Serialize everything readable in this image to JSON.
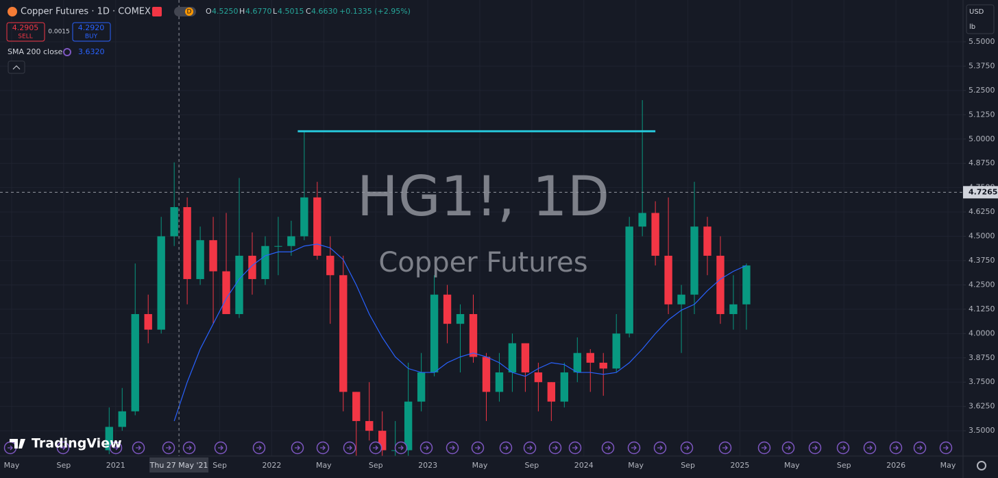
{
  "header": {
    "title": "Copper Futures · 1D · COMEX",
    "interval_badge": "D",
    "o_label": "O",
    "o": "4.5250",
    "h_label": "H",
    "h": "4.6770",
    "l_label": "L",
    "l": "4.5015",
    "c_label": "C",
    "c": "4.6630",
    "change": "+0.1335 (+2.95%)",
    "sell_price": "4.2905",
    "sell": "SELL",
    "spread": "0.0015",
    "buy_price": "4.2920",
    "buy": "BUY",
    "sma_value": "3.6320",
    "currency": "USD",
    "unit": "lb",
    "logo": "TradingView"
  },
  "watermark": {
    "symbol": "HG1!, 1D",
    "name": "Copper Futures"
  },
  "chart_data": {
    "type": "candlestick",
    "up_color": "#089981",
    "down_color": "#f23645",
    "grid": true,
    "x": [
      "2020-12",
      "2021-01",
      "2021-02",
      "2021-03",
      "2021-04",
      "2021-05",
      "2021-06",
      "2021-07",
      "2021-08",
      "2021-09",
      "2021-10",
      "2021-11",
      "2021-12",
      "2022-01",
      "2022-02",
      "2022-03",
      "2022-04",
      "2022-05",
      "2022-06",
      "2022-07",
      "2022-08",
      "2022-09",
      "2022-10",
      "2022-11",
      "2022-12",
      "2023-01",
      "2023-02",
      "2023-03",
      "2023-04",
      "2023-05",
      "2023-06",
      "2023-07",
      "2023-08",
      "2023-09",
      "2023-10",
      "2023-11",
      "2023-12",
      "2024-01",
      "2024-02",
      "2024-03",
      "2024-04",
      "2024-05",
      "2024-06",
      "2024-07",
      "2024-08",
      "2024-09",
      "2024-10",
      "2024-11",
      "2024-12",
      "2025-01"
    ],
    "open": [
      3.4,
      3.52,
      3.6,
      4.1,
      4.02,
      4.5,
      4.65,
      4.28,
      4.48,
      4.32,
      4.1,
      4.4,
      4.28,
      4.45,
      4.45,
      4.5,
      4.7,
      4.4,
      4.3,
      3.7,
      3.55,
      3.5,
      3.4,
      3.4,
      3.65,
      3.8,
      4.2,
      4.05,
      4.1,
      3.88,
      3.7,
      3.8,
      3.95,
      3.8,
      3.75,
      3.65,
      3.8,
      3.9,
      3.85,
      3.82,
      4.0,
      4.55,
      4.62,
      4.4,
      4.15,
      4.2,
      4.55,
      4.4,
      4.1,
      4.15
    ],
    "high": [
      3.62,
      3.72,
      4.36,
      4.2,
      4.6,
      4.88,
      4.7,
      4.55,
      4.6,
      4.62,
      4.8,
      4.52,
      4.5,
      4.6,
      4.58,
      5.04,
      4.78,
      4.5,
      4.4,
      3.7,
      3.75,
      3.6,
      3.55,
      3.85,
      3.9,
      4.3,
      4.25,
      4.15,
      4.2,
      3.9,
      3.9,
      4.0,
      3.95,
      3.85,
      3.75,
      3.85,
      3.98,
      3.92,
      3.9,
      4.1,
      4.6,
      5.2,
      4.68,
      4.7,
      4.25,
      4.78,
      4.6,
      4.5,
      4.3,
      4.36
    ],
    "low": [
      3.38,
      3.5,
      3.58,
      3.95,
      4.0,
      4.45,
      4.15,
      4.25,
      4.05,
      4.1,
      4.08,
      4.2,
      4.25,
      4.3,
      4.4,
      4.48,
      4.38,
      4.05,
      3.6,
      3.15,
      3.45,
      3.3,
      3.3,
      3.35,
      3.6,
      3.78,
      3.95,
      3.8,
      3.85,
      3.55,
      3.65,
      3.7,
      3.7,
      3.6,
      3.55,
      3.62,
      3.75,
      3.7,
      3.68,
      3.8,
      3.98,
      4.5,
      4.35,
      4.1,
      3.9,
      4.1,
      4.3,
      4.05,
      4.02,
      4.02
    ],
    "close": [
      3.52,
      3.6,
      4.1,
      4.02,
      4.5,
      4.65,
      4.28,
      4.48,
      4.32,
      4.1,
      4.4,
      4.28,
      4.45,
      4.45,
      4.5,
      4.7,
      4.4,
      4.3,
      3.7,
      3.55,
      3.5,
      3.4,
      3.4,
      3.65,
      3.8,
      4.2,
      4.05,
      4.1,
      3.88,
      3.7,
      3.8,
      3.95,
      3.8,
      3.75,
      3.65,
      3.8,
      3.9,
      3.85,
      3.82,
      4.0,
      4.55,
      4.62,
      4.4,
      4.15,
      4.2,
      4.55,
      4.4,
      4.1,
      4.15,
      4.35
    ],
    "sma": {
      "name": "SMA 200 close",
      "color": "#2962ff",
      "values": [
        null,
        null,
        null,
        null,
        null,
        3.55,
        3.75,
        3.92,
        4.05,
        4.18,
        4.28,
        4.35,
        4.4,
        4.42,
        4.42,
        4.45,
        4.46,
        4.44,
        4.38,
        4.25,
        4.1,
        3.98,
        3.88,
        3.82,
        3.8,
        3.8,
        3.85,
        3.88,
        3.9,
        3.88,
        3.85,
        3.8,
        3.78,
        3.82,
        3.85,
        3.84,
        3.8,
        3.8,
        3.79,
        3.8,
        3.85,
        3.92,
        4.0,
        4.07,
        4.12,
        4.15,
        4.22,
        4.28,
        4.32,
        4.35
      ]
    },
    "level": {
      "value": 5.04,
      "from": "2022-03",
      "to": "2024-06",
      "color": "#26c6da"
    },
    "crosshair": {
      "x": "2021-05-27",
      "x_label": "Thu 27 May '21",
      "y": 4.7265
    },
    "xlim": [
      "2020-05",
      "2026-05"
    ],
    "xticks": [
      {
        "value": "2020-05",
        "label": "May"
      },
      {
        "value": "2020-09",
        "label": "Sep"
      },
      {
        "value": "2021-01",
        "label": "2021"
      },
      {
        "value": "2021-09",
        "label": "Sep"
      },
      {
        "value": "2022-01",
        "label": "2022"
      },
      {
        "value": "2022-05",
        "label": "May"
      },
      {
        "value": "2022-09",
        "label": "Sep"
      },
      {
        "value": "2023-01",
        "label": "2023"
      },
      {
        "value": "2023-05",
        "label": "May"
      },
      {
        "value": "2023-09",
        "label": "Sep"
      },
      {
        "value": "2024-01",
        "label": "2024"
      },
      {
        "value": "2024-05",
        "label": "May"
      },
      {
        "value": "2024-09",
        "label": "Sep"
      },
      {
        "value": "2025-01",
        "label": "2025"
      },
      {
        "value": "2025-05",
        "label": "May"
      },
      {
        "value": "2025-09",
        "label": "Sep"
      },
      {
        "value": "2026-01",
        "label": "2026"
      },
      {
        "value": "2026-05",
        "label": "May"
      }
    ],
    "ylim": [
      3.37,
      5.715
    ],
    "yticks": [
      {
        "value": 3.5,
        "label": "3.5000"
      },
      {
        "value": 3.625,
        "label": "3.6250"
      },
      {
        "value": 3.75,
        "label": "3.7500"
      },
      {
        "value": 3.875,
        "label": "3.8750"
      },
      {
        "value": 4,
        "label": "4.0000"
      },
      {
        "value": 4.125,
        "label": "4.1250"
      },
      {
        "value": 4.25,
        "label": "4.2500"
      },
      {
        "value": 4.375,
        "label": "4.3750"
      },
      {
        "value": 4.5,
        "label": "4.5000"
      },
      {
        "value": 4.625,
        "label": "4.6250"
      },
      {
        "value": 4.75,
        "label": "4.7500"
      },
      {
        "value": 4.875,
        "label": "4.8750"
      },
      {
        "value": 5,
        "label": "5.0000"
      },
      {
        "value": 5.125,
        "label": "5.1250"
      },
      {
        "value": 5.25,
        "label": "5.2500"
      },
      {
        "value": 5.375,
        "label": "5.3750"
      },
      {
        "value": 5.5,
        "label": "5.5000"
      }
    ]
  }
}
